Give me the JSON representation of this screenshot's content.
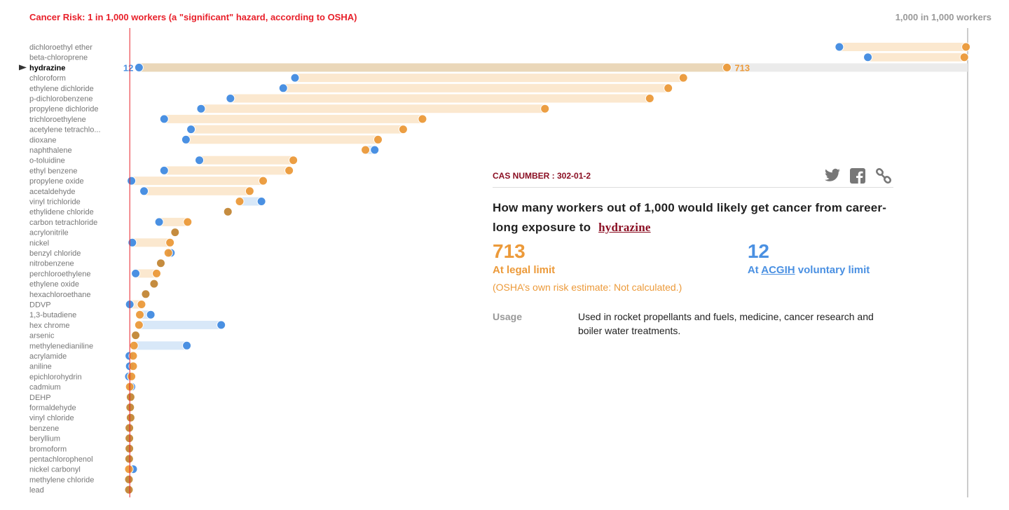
{
  "header": {
    "left": "Cancer Risk: 1 in 1,000 workers (a \"significant\" hazard, according to OSHA)",
    "right": "1,000 in 1,000 workers"
  },
  "colors": {
    "legal": "#ec9a3a",
    "acgih": "#4a90e2",
    "overlap": "#c58c3f",
    "threshold": "#e8202a",
    "legal_bar": "#fbe8cf",
    "acgih_bar": "#d8e8f8",
    "selected_bar": "#ead7b9"
  },
  "chart_data": {
    "type": "dumbbell",
    "xlim": [
      0,
      1000
    ],
    "threshold": 1,
    "selected": "hydrazine",
    "series": [
      {
        "name": "At legal limit",
        "key": "legal"
      },
      {
        "name": "At ACGIH voluntary limit",
        "key": "acgih"
      }
    ],
    "rows": [
      {
        "name": "dichloroethyl ether",
        "legal": 998,
        "acgih": 847
      },
      {
        "name": "beta-chloroprene",
        "legal": 996,
        "acgih": 881
      },
      {
        "name": "hydrazine",
        "legal": 713,
        "acgih": 12
      },
      {
        "name": "chloroform",
        "legal": 661,
        "acgih": 198
      },
      {
        "name": "ethylene dichloride",
        "legal": 643,
        "acgih": 184
      },
      {
        "name": "p-dichlorobenzene",
        "legal": 621,
        "acgih": 121
      },
      {
        "name": "propylene dichloride",
        "legal": 496,
        "acgih": 86
      },
      {
        "name": "trichloroethylene",
        "legal": 350,
        "acgih": 42
      },
      {
        "name": "acetylene tetrachlo...",
        "legal": 327,
        "acgih": 74
      },
      {
        "name": "dioxane",
        "legal": 297,
        "acgih": 68
      },
      {
        "name": "naphthalene",
        "legal": 282,
        "acgih": 293
      },
      {
        "name": "o-toluidine",
        "legal": 196,
        "acgih": 84
      },
      {
        "name": "ethyl benzene",
        "legal": 191,
        "acgih": 42
      },
      {
        "name": "propylene oxide",
        "legal": 160,
        "acgih": 3
      },
      {
        "name": "acetaldehyde",
        "legal": 144,
        "acgih": 18
      },
      {
        "name": "vinyl trichloride",
        "legal": 132,
        "acgih": 158
      },
      {
        "name": "ethylidene chloride",
        "legal": 118,
        "acgih": 118
      },
      {
        "name": "carbon tetrachloride",
        "legal": 70,
        "acgih": 36
      },
      {
        "name": "acrylonitrile",
        "legal": 55,
        "acgih": 55
      },
      {
        "name": "nickel",
        "legal": 49,
        "acgih": 4
      },
      {
        "name": "benzyl chloride",
        "legal": 47,
        "acgih": 50
      },
      {
        "name": "nitrobenzene",
        "legal": 38,
        "acgih": 38
      },
      {
        "name": "perchloroethylene",
        "legal": 33,
        "acgih": 8
      },
      {
        "name": "ethylene oxide",
        "legal": 30,
        "acgih": 30
      },
      {
        "name": "hexachloroethane",
        "legal": 20,
        "acgih": 20
      },
      {
        "name": "DDVP",
        "legal": 15,
        "acgih": 1
      },
      {
        "name": "1,3-butadiene",
        "legal": 13,
        "acgih": 26
      },
      {
        "name": "hex chrome",
        "legal": 12,
        "acgih": 110
      },
      {
        "name": "arsenic",
        "legal": 8,
        "acgih": 8
      },
      {
        "name": "methylenedianiline",
        "legal": 6,
        "acgih": 69
      },
      {
        "name": "acrylamide",
        "legal": 5,
        "acgih": 0.5
      },
      {
        "name": "aniline",
        "legal": 5,
        "acgih": 1
      },
      {
        "name": "epichlorohydrin",
        "legal": 3,
        "acgih": 0
      },
      {
        "name": "cadmium",
        "legal": 1,
        "acgih": 3
      },
      {
        "name": "DEHP",
        "legal": 2,
        "acgih": 2
      },
      {
        "name": "formaldehyde",
        "legal": 1.5,
        "acgih": 1.5
      },
      {
        "name": "vinyl chloride",
        "legal": 2,
        "acgih": 2
      },
      {
        "name": "benzene",
        "legal": 0.5,
        "acgih": 0.5
      },
      {
        "name": "beryllium",
        "legal": 0.5,
        "acgih": 0.5
      },
      {
        "name": "bromoform",
        "legal": 0.5,
        "acgih": 0.5
      },
      {
        "name": "pentachlorophenol",
        "legal": 0.3,
        "acgih": 0.3
      },
      {
        "name": "nickel carbonyl",
        "legal": 0,
        "acgih": 5
      },
      {
        "name": "methylene chloride",
        "legal": 0,
        "acgih": 0
      },
      {
        "name": "lead",
        "legal": 0,
        "acgih": 0
      }
    ],
    "selected_labels": {
      "acgih": "12",
      "legal": "713"
    }
  },
  "detail": {
    "cas": "CAS NUMBER : 302-01-2",
    "question": "How many workers out of 1,000 would likely get cancer from career-long exposure to",
    "chemical": "hydrazine",
    "legal_value": "713",
    "legal_label": "At legal limit",
    "acgih_value": "12",
    "acgih_prefix": "At ",
    "acgih_link": "ACGIH",
    "acgih_suffix": " voluntary limit",
    "osha_note": "(OSHA’s own risk estimate: Not calculated.)",
    "usage_key": "Usage",
    "usage_text": "Used in rocket propellants and fuels, medicine, cancer research and boiler water treatments.",
    "icons": [
      "twitter-icon",
      "facebook-icon",
      "link-icon"
    ]
  }
}
